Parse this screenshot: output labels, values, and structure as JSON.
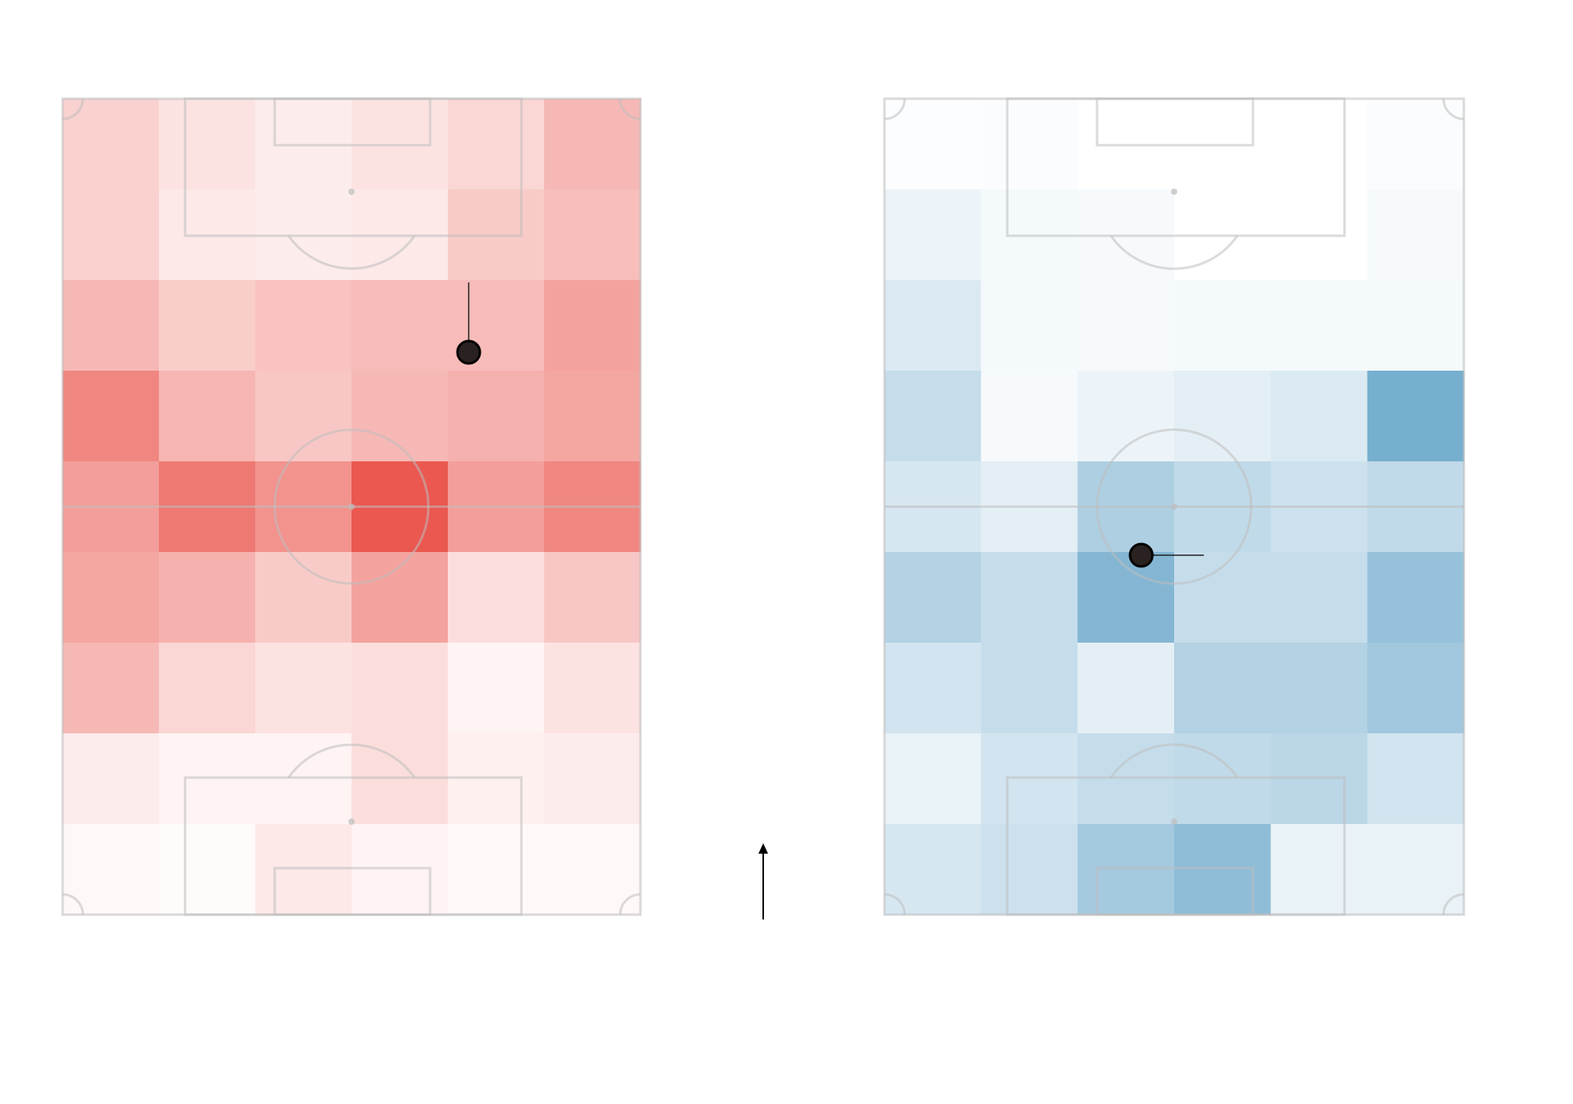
{
  "chart_data": [
    {
      "type": "heatmap",
      "color": "#e8453c",
      "zlim": [
        0,
        1
      ],
      "values": [
        [
          0.25,
          0.15,
          0.1,
          0.15,
          0.22,
          0.38
        ],
        [
          0.25,
          0.12,
          0.1,
          0.12,
          0.28,
          0.35
        ],
        [
          0.38,
          0.27,
          0.32,
          0.36,
          0.36,
          0.5
        ],
        [
          0.65,
          0.4,
          0.3,
          0.38,
          0.42,
          0.48
        ],
        [
          0.52,
          0.72,
          0.58,
          0.9,
          0.52,
          0.65
        ],
        [
          0.48,
          0.42,
          0.28,
          0.5,
          0.18,
          0.3
        ],
        [
          0.38,
          0.22,
          0.15,
          0.18,
          0.06,
          0.15
        ],
        [
          0.1,
          0.06,
          0.06,
          0.18,
          0.08,
          0.1
        ],
        [
          0.04,
          0.02,
          0.12,
          0.06,
          0.04,
          0.04
        ]
      ]
    },
    {
      "type": "heatmap",
      "color": "#4a94bf",
      "zlim": [
        0,
        1
      ],
      "values": [
        [
          0.02,
          0.03,
          0,
          0,
          0,
          0.03
        ],
        [
          0.1,
          0.06,
          0.05,
          0,
          0,
          0.05
        ],
        [
          0.2,
          0.06,
          0.05,
          0.06,
          0.06,
          0.06
        ],
        [
          0.32,
          0.05,
          0.1,
          0.15,
          0.2,
          0.75
        ],
        [
          0.22,
          0.15,
          0.45,
          0.35,
          0.28,
          0.35
        ],
        [
          0.42,
          0.32,
          0.68,
          0.32,
          0.32,
          0.58
        ],
        [
          0.25,
          0.32,
          0.15,
          0.42,
          0.42,
          0.52
        ],
        [
          0.12,
          0.25,
          0.32,
          0.35,
          0.38,
          0.25
        ],
        [
          0.22,
          0.28,
          0.5,
          0.62,
          0.12,
          0.12
        ]
      ]
    }
  ]
}
